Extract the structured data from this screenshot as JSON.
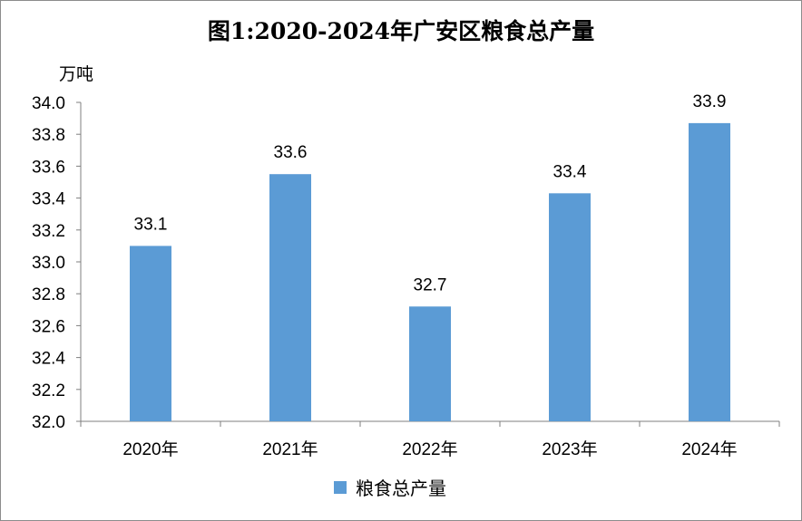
{
  "chart_data": {
    "type": "bar",
    "title": "图1:2020-2024年广安区粮食总产量",
    "unit_label": "万吨",
    "categories": [
      "2020年",
      "2021年",
      "2022年",
      "2023年",
      "2024年"
    ],
    "series": [
      {
        "name": "粮食总产量",
        "values": [
          33.1,
          33.55,
          32.72,
          33.43,
          33.87
        ],
        "labels": [
          "33.1",
          "33.6",
          "32.7",
          "33.4",
          "33.9"
        ],
        "color": "#5b9bd5"
      }
    ],
    "ylim": [
      32.0,
      34.0
    ],
    "yticks": [
      "32.0",
      "32.2",
      "32.4",
      "32.6",
      "32.8",
      "33.0",
      "33.2",
      "33.4",
      "33.6",
      "33.8",
      "34.0"
    ],
    "grid": false,
    "legend_position": "bottom"
  }
}
